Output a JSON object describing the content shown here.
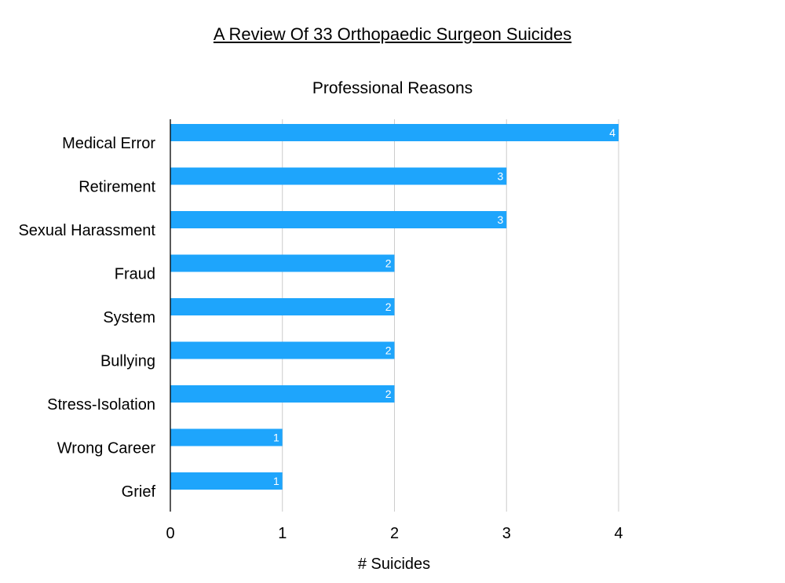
{
  "title": "A Review Of 33 Orthopaedic Surgeon Suicides",
  "colors": {
    "bar": "#1ea5fc",
    "grid": "#cccccc",
    "axis": "#000000",
    "data_label": "#ffffff"
  },
  "chart_data": {
    "type": "bar",
    "orientation": "horizontal",
    "title": "Professional Reasons",
    "xlabel": "# Suicides",
    "ylabel": "",
    "categories": [
      "Medical Error",
      "Retirement",
      "Sexual Harassment",
      "Fraud",
      "System",
      "Bullying",
      "Stress-Isolation",
      "Wrong Career",
      "Grief"
    ],
    "values": [
      4,
      3,
      3,
      2,
      2,
      2,
      2,
      1,
      1
    ],
    "xlim": [
      0,
      4
    ],
    "ticks": [
      0,
      1,
      2,
      3,
      4
    ],
    "grid": true,
    "legend": "none"
  }
}
